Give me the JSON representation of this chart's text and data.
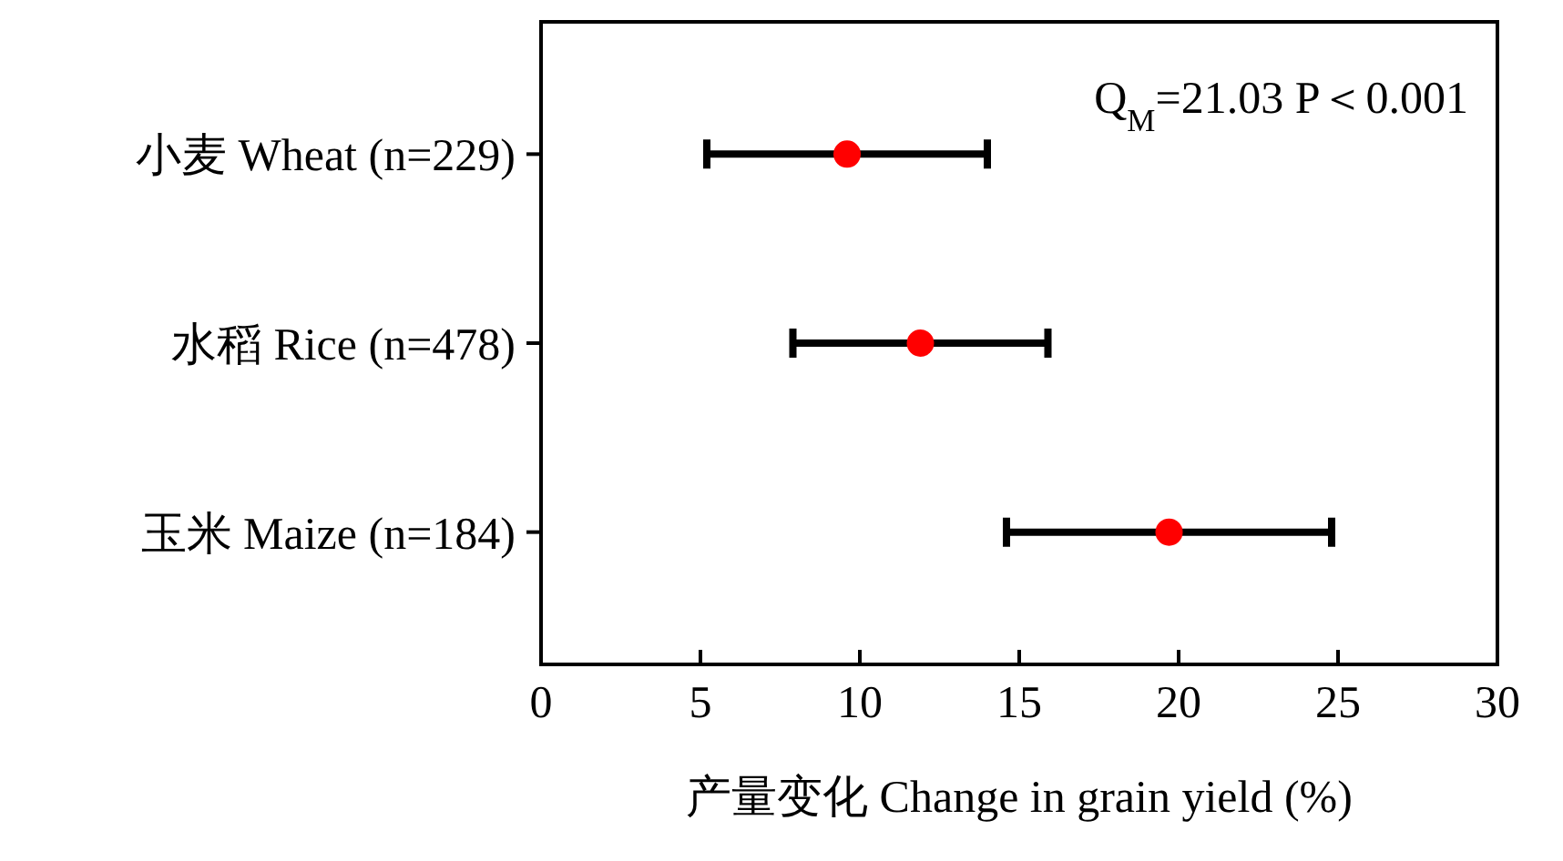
{
  "chart_data": {
    "type": "scatter",
    "orientation": "horizontal",
    "categories": [
      "小麦 Wheat (n=229)",
      "水稻 Rice (n=478)",
      "玉米 Maize (n=184)"
    ],
    "series": [
      {
        "color": "#ff0000",
        "values": [
          9.6,
          11.9,
          19.7
        ],
        "errors": [
          [
            5.2,
            14.0
          ],
          [
            7.9,
            15.9
          ],
          [
            14.6,
            24.8
          ]
        ]
      }
    ],
    "xlim": [
      0,
      30
    ],
    "xticks": [
      0,
      5,
      10,
      15,
      20,
      25,
      30
    ],
    "xlabel": "产量变化 Change in grain yield (%)",
    "annotations": [
      "Q$_{M}$=21.03  P＜0.001"
    ],
    "marker": "circle",
    "grid": false
  }
}
